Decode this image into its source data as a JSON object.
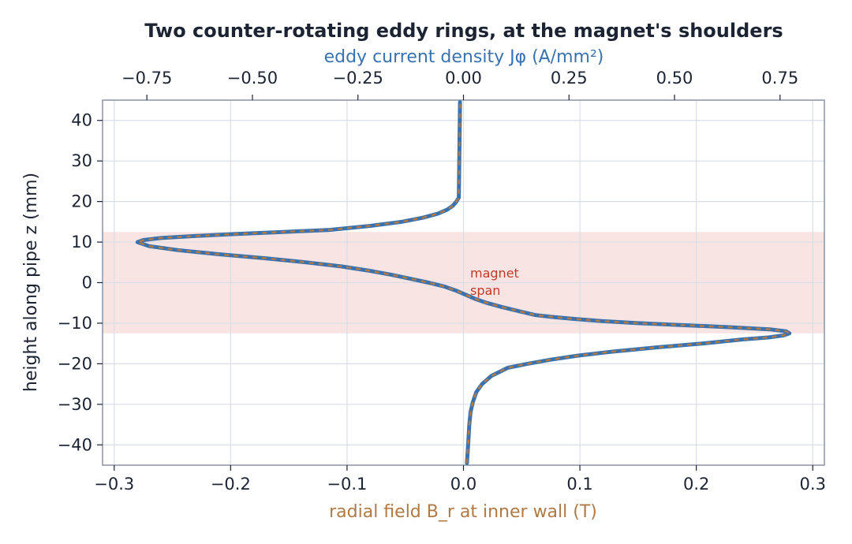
{
  "chart_data": {
    "type": "line",
    "title": "Two counter-rotating eddy rings, at the magnet's shoulders",
    "xlabel": "radial field  B_r  at inner wall (T)",
    "xlabel_top": "eddy current density  Jφ  (A/mm²)",
    "ylabel": "height along pipe  z  (mm)",
    "xlim": [
      -0.31,
      0.31
    ],
    "xlim_top": [
      -0.855,
      0.855
    ],
    "ylim": [
      -45,
      45
    ],
    "x_ticks": [
      -0.3,
      -0.2,
      -0.1,
      0.0,
      0.1,
      0.2,
      0.3
    ],
    "x_tick_labels": [
      "−0.3",
      "−0.2",
      "−0.1",
      "0.0",
      "0.1",
      "0.2",
      "0.3"
    ],
    "x_top_ticks": [
      -0.75,
      -0.5,
      -0.25,
      0.0,
      0.25,
      0.5,
      0.75
    ],
    "x_top_tick_labels": [
      "−0.75",
      "−0.50",
      "−0.25",
      "0.00",
      "0.25",
      "0.50",
      "0.75"
    ],
    "y_ticks": [
      -40,
      -30,
      -20,
      -10,
      0,
      10,
      20,
      30,
      40
    ],
    "y_tick_labels": [
      "−40",
      "−30",
      "−20",
      "−10",
      "0",
      "10",
      "20",
      "30",
      "40"
    ],
    "grid": true,
    "magnet_span": {
      "z_min": -12.5,
      "z_max": 12.5,
      "label": "magnet span",
      "color": "#c0392b"
    },
    "colors": {
      "br": "#b07a45",
      "jphi": "#3a72b0",
      "grid": "#d9dee6",
      "axes": "#8a93a3",
      "title": "#1c2333",
      "span_fill": "#f8e4e3"
    },
    "series": [
      {
        "key": "br",
        "x": [
          0.003,
          0.004,
          0.005,
          0.006,
          0.008,
          0.011,
          0.016,
          0.024,
          0.038,
          0.055,
          0.075,
          0.098,
          0.128,
          0.165,
          0.205,
          0.24,
          0.262,
          0.275,
          0.28,
          0.277,
          0.263,
          0.23,
          0.19,
          0.15,
          0.12,
          0.097,
          0.078,
          0.062,
          0.047,
          0.033,
          0.02,
          0.01,
          0.002,
          -0.006,
          -0.016,
          -0.03,
          -0.046,
          -0.063,
          -0.082,
          -0.105,
          -0.135,
          -0.17,
          -0.21,
          -0.245,
          -0.27,
          -0.28,
          -0.275,
          -0.26,
          -0.23,
          -0.195,
          -0.155,
          -0.115,
          -0.08,
          -0.053,
          -0.035,
          -0.022,
          -0.014,
          -0.009,
          -0.006,
          -0.004,
          -0.003
        ],
        "z": [
          -44.5,
          -40,
          -35,
          -32,
          -29.5,
          -27,
          -25,
          -23,
          -21,
          -20,
          -19,
          -18,
          -17,
          -16,
          -15,
          -14,
          -13.5,
          -13,
          -12.5,
          -12,
          -11.5,
          -11,
          -10.5,
          -10,
          -9.5,
          -9,
          -8.5,
          -8,
          -7,
          -6,
          -5,
          -4,
          -3,
          -2,
          -1,
          0,
          1,
          2,
          3,
          4,
          5,
          6,
          7,
          8,
          9,
          10,
          10.5,
          11,
          11.5,
          12,
          12.5,
          13,
          14,
          15,
          16,
          17,
          18,
          19,
          20,
          21,
          44.5
        ]
      },
      {
        "key": "jphi",
        "name": "",
        "style": "solid-under-dashed"
      }
    ]
  }
}
